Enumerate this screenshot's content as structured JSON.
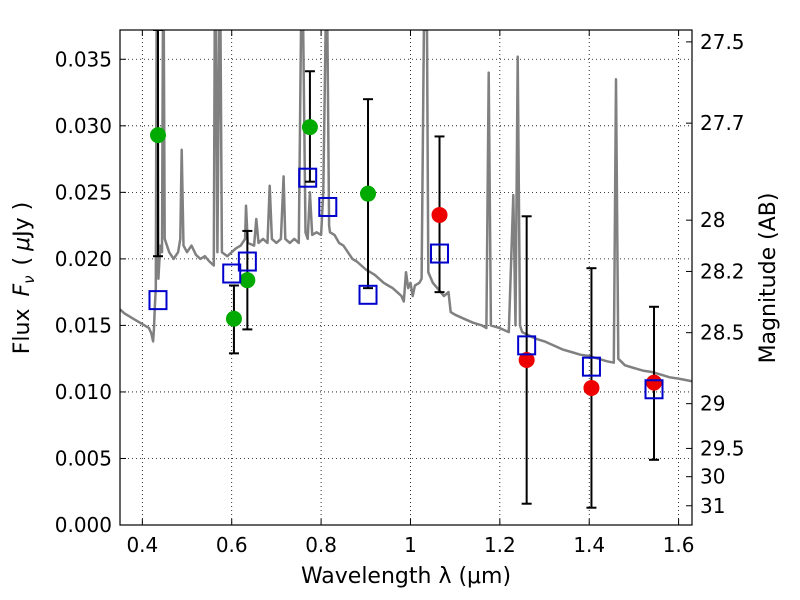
{
  "chart_data": {
    "type": "scatter",
    "xlabel": "Wavelength  λ (μm)",
    "ylabel": "Flux  F_ν  ( μJy )",
    "ylabel_parts": {
      "flux": "Flux",
      "symbol": "F",
      "subscript": "ν",
      "unit_open": "(",
      "mu": "μ",
      "unit_rest": "Jy )"
    },
    "y2label": "Magnitude (AB)",
    "xlim": [
      0.35,
      1.63
    ],
    "ylim": [
      0.0,
      0.0372
    ],
    "grid": true,
    "x_ticks": [
      {
        "value": 0.4,
        "label": "0.4"
      },
      {
        "value": 0.6,
        "label": "0.6"
      },
      {
        "value": 0.8,
        "label": "0.8"
      },
      {
        "value": 1.0,
        "label": "1"
      },
      {
        "value": 1.2,
        "label": "1.2"
      },
      {
        "value": 1.4,
        "label": "1.4"
      },
      {
        "value": 1.6,
        "label": "1.6"
      }
    ],
    "y_ticks": [
      {
        "value": 0.0,
        "label": "0.000"
      },
      {
        "value": 0.005,
        "label": "0.005"
      },
      {
        "value": 0.01,
        "label": "0.010"
      },
      {
        "value": 0.015,
        "label": "0.015"
      },
      {
        "value": 0.02,
        "label": "0.020"
      },
      {
        "value": 0.025,
        "label": "0.025"
      },
      {
        "value": 0.03,
        "label": "0.030"
      },
      {
        "value": 0.035,
        "label": "0.035"
      }
    ],
    "y2_ticks": [
      {
        "value": 27.5,
        "label": "27.5"
      },
      {
        "value": 27.7,
        "label": "27.7"
      },
      {
        "value": 28.0,
        "label": "28"
      },
      {
        "value": 28.2,
        "label": "28.2"
      },
      {
        "value": 28.5,
        "label": "28.5"
      },
      {
        "value": 29.0,
        "label": "29"
      },
      {
        "value": 29.5,
        "label": "29.5"
      },
      {
        "value": 30.0,
        "label": "30"
      },
      {
        "value": 31.0,
        "label": "31"
      }
    ],
    "series": [
      {
        "marker": "circle",
        "color": "#00aa00",
        "points": [
          {
            "x": 0.435,
            "y": 0.0293,
            "err_low": 0.0202,
            "err_high": 0.0372
          },
          {
            "x": 0.605,
            "y": 0.0155,
            "err_low": 0.0129,
            "err_high": 0.018
          },
          {
            "x": 0.635,
            "y": 0.0184,
            "err_low": 0.0147,
            "err_high": 0.0221
          },
          {
            "x": 0.775,
            "y": 0.0299,
            "err_low": 0.0258,
            "err_high": 0.0341
          },
          {
            "x": 0.905,
            "y": 0.0249,
            "err_low": 0.0178,
            "err_high": 0.032
          }
        ]
      },
      {
        "marker": "circle",
        "color": "#ee0000",
        "points": [
          {
            "x": 1.065,
            "y": 0.0233,
            "err_low": 0.0175,
            "err_high": 0.0292
          },
          {
            "x": 1.26,
            "y": 0.0124,
            "err_low": 0.0016,
            "err_high": 0.0232
          },
          {
            "x": 1.405,
            "y": 0.0103,
            "err_low": 0.0013,
            "err_high": 0.0193
          },
          {
            "x": 1.545,
            "y": 0.0107,
            "err_low": 0.0049,
            "err_high": 0.0164
          }
        ]
      },
      {
        "marker": "open-square",
        "color": "#0000cc",
        "points": [
          {
            "x": 0.435,
            "y": 0.0169
          },
          {
            "x": 0.6,
            "y": 0.0189
          },
          {
            "x": 0.635,
            "y": 0.0198
          },
          {
            "x": 0.77,
            "y": 0.0261
          },
          {
            "x": 0.815,
            "y": 0.0239
          },
          {
            "x": 0.905,
            "y": 0.0173
          },
          {
            "x": 1.065,
            "y": 0.0204
          },
          {
            "x": 1.26,
            "y": 0.0135
          },
          {
            "x": 1.405,
            "y": 0.0119
          },
          {
            "x": 1.545,
            "y": 0.0102
          }
        ]
      },
      {
        "type": "line",
        "color": "#808080",
        "points": [
          {
            "x": 0.35,
            "y": 0.0162
          },
          {
            "x": 0.36,
            "y": 0.0159
          },
          {
            "x": 0.38,
            "y": 0.0155
          },
          {
            "x": 0.4,
            "y": 0.0151
          },
          {
            "x": 0.415,
            "y": 0.0148
          },
          {
            "x": 0.42,
            "y": 0.0144
          },
          {
            "x": 0.424,
            "y": 0.0138
          },
          {
            "x": 0.426,
            "y": 0.0148
          },
          {
            "x": 0.428,
            "y": 0.0165
          },
          {
            "x": 0.43,
            "y": 0.0178
          },
          {
            "x": 0.432,
            "y": 0.0372
          },
          {
            "x": 0.434,
            "y": 0.0372
          },
          {
            "x": 0.436,
            "y": 0.0185
          },
          {
            "x": 0.44,
            "y": 0.021
          },
          {
            "x": 0.444,
            "y": 0.0205
          },
          {
            "x": 0.446,
            "y": 0.0372
          },
          {
            "x": 0.448,
            "y": 0.0372
          },
          {
            "x": 0.45,
            "y": 0.0215
          },
          {
            "x": 0.46,
            "y": 0.0205
          },
          {
            "x": 0.47,
            "y": 0.02
          },
          {
            "x": 0.48,
            "y": 0.0205
          },
          {
            "x": 0.485,
            "y": 0.0215
          },
          {
            "x": 0.488,
            "y": 0.0282
          },
          {
            "x": 0.492,
            "y": 0.021
          },
          {
            "x": 0.5,
            "y": 0.0205
          },
          {
            "x": 0.51,
            "y": 0.021
          },
          {
            "x": 0.52,
            "y": 0.0203
          },
          {
            "x": 0.53,
            "y": 0.02
          },
          {
            "x": 0.54,
            "y": 0.0202
          },
          {
            "x": 0.55,
            "y": 0.0198
          },
          {
            "x": 0.56,
            "y": 0.0195
          },
          {
            "x": 0.562,
            "y": 0.0372
          },
          {
            "x": 0.565,
            "y": 0.0372
          },
          {
            "x": 0.568,
            "y": 0.0205
          },
          {
            "x": 0.572,
            "y": 0.0372
          },
          {
            "x": 0.575,
            "y": 0.0372
          },
          {
            "x": 0.578,
            "y": 0.0205
          },
          {
            "x": 0.59,
            "y": 0.0202
          },
          {
            "x": 0.6,
            "y": 0.0205
          },
          {
            "x": 0.61,
            "y": 0.0208
          },
          {
            "x": 0.62,
            "y": 0.021
          },
          {
            "x": 0.63,
            "y": 0.0215
          },
          {
            "x": 0.632,
            "y": 0.024
          },
          {
            "x": 0.636,
            "y": 0.0212
          },
          {
            "x": 0.65,
            "y": 0.021
          },
          {
            "x": 0.655,
            "y": 0.023
          },
          {
            "x": 0.66,
            "y": 0.0212
          },
          {
            "x": 0.67,
            "y": 0.0215
          },
          {
            "x": 0.68,
            "y": 0.0212
          },
          {
            "x": 0.685,
            "y": 0.0255
          },
          {
            "x": 0.69,
            "y": 0.0215
          },
          {
            "x": 0.7,
            "y": 0.0212
          },
          {
            "x": 0.71,
            "y": 0.0215
          },
          {
            "x": 0.716,
            "y": 0.0262
          },
          {
            "x": 0.72,
            "y": 0.0215
          },
          {
            "x": 0.73,
            "y": 0.0212
          },
          {
            "x": 0.74,
            "y": 0.0215
          },
          {
            "x": 0.75,
            "y": 0.0212
          },
          {
            "x": 0.755,
            "y": 0.0372
          },
          {
            "x": 0.76,
            "y": 0.0372
          },
          {
            "x": 0.765,
            "y": 0.022
          },
          {
            "x": 0.77,
            "y": 0.0215
          },
          {
            "x": 0.775,
            "y": 0.025
          },
          {
            "x": 0.78,
            "y": 0.0218
          },
          {
            "x": 0.79,
            "y": 0.022
          },
          {
            "x": 0.8,
            "y": 0.0218
          },
          {
            "x": 0.805,
            "y": 0.025
          },
          {
            "x": 0.81,
            "y": 0.0372
          },
          {
            "x": 0.814,
            "y": 0.0372
          },
          {
            "x": 0.818,
            "y": 0.0225
          },
          {
            "x": 0.82,
            "y": 0.022
          },
          {
            "x": 0.83,
            "y": 0.0218
          },
          {
            "x": 0.84,
            "y": 0.0212
          },
          {
            "x": 0.85,
            "y": 0.021
          },
          {
            "x": 0.86,
            "y": 0.0205
          },
          {
            "x": 0.87,
            "y": 0.02
          },
          {
            "x": 0.88,
            "y": 0.0198
          },
          {
            "x": 0.89,
            "y": 0.0195
          },
          {
            "x": 0.9,
            "y": 0.0192
          },
          {
            "x": 0.91,
            "y": 0.019
          },
          {
            "x": 0.92,
            "y": 0.0188
          },
          {
            "x": 0.93,
            "y": 0.0185
          },
          {
            "x": 0.94,
            "y": 0.0182
          },
          {
            "x": 0.95,
            "y": 0.018
          },
          {
            "x": 0.96,
            "y": 0.0178
          },
          {
            "x": 0.97,
            "y": 0.0175
          },
          {
            "x": 0.98,
            "y": 0.0172
          },
          {
            "x": 0.985,
            "y": 0.0168
          },
          {
            "x": 0.99,
            "y": 0.019
          },
          {
            "x": 0.995,
            "y": 0.0178
          },
          {
            "x": 1.0,
            "y": 0.0182
          },
          {
            "x": 1.005,
            "y": 0.0172
          },
          {
            "x": 1.01,
            "y": 0.018
          },
          {
            "x": 1.02,
            "y": 0.0182
          },
          {
            "x": 1.025,
            "y": 0.0185
          },
          {
            "x": 1.03,
            "y": 0.0372
          },
          {
            "x": 1.037,
            "y": 0.0372
          },
          {
            "x": 1.04,
            "y": 0.019
          },
          {
            "x": 1.05,
            "y": 0.0182
          },
          {
            "x": 1.06,
            "y": 0.0178
          },
          {
            "x": 1.075,
            "y": 0.0172
          },
          {
            "x": 1.085,
            "y": 0.0175
          },
          {
            "x": 1.09,
            "y": 0.016
          },
          {
            "x": 1.1,
            "y": 0.0158
          },
          {
            "x": 1.12,
            "y": 0.0155
          },
          {
            "x": 1.14,
            "y": 0.0152
          },
          {
            "x": 1.16,
            "y": 0.015
          },
          {
            "x": 1.17,
            "y": 0.0148
          },
          {
            "x": 1.175,
            "y": 0.034
          },
          {
            "x": 1.18,
            "y": 0.015
          },
          {
            "x": 1.2,
            "y": 0.0148
          },
          {
            "x": 1.22,
            "y": 0.0145
          },
          {
            "x": 1.23,
            "y": 0.0248
          },
          {
            "x": 1.235,
            "y": 0.015
          },
          {
            "x": 1.24,
            "y": 0.0352
          },
          {
            "x": 1.245,
            "y": 0.015
          },
          {
            "x": 1.25,
            "y": 0.0145
          },
          {
            "x": 1.28,
            "y": 0.014
          },
          {
            "x": 1.3,
            "y": 0.0138
          },
          {
            "x": 1.32,
            "y": 0.0135
          },
          {
            "x": 1.34,
            "y": 0.0132
          },
          {
            "x": 1.36,
            "y": 0.013
          },
          {
            "x": 1.38,
            "y": 0.0128
          },
          {
            "x": 1.4,
            "y": 0.0127
          },
          {
            "x": 1.42,
            "y": 0.0125
          },
          {
            "x": 1.44,
            "y": 0.0123
          },
          {
            "x": 1.455,
            "y": 0.0122
          },
          {
            "x": 1.46,
            "y": 0.0335
          },
          {
            "x": 1.465,
            "y": 0.0125
          },
          {
            "x": 1.48,
            "y": 0.012
          },
          {
            "x": 1.5,
            "y": 0.0118
          },
          {
            "x": 1.52,
            "y": 0.0116
          },
          {
            "x": 1.54,
            "y": 0.0115
          },
          {
            "x": 1.56,
            "y": 0.0113
          },
          {
            "x": 1.58,
            "y": 0.0111
          },
          {
            "x": 1.6,
            "y": 0.011
          },
          {
            "x": 1.63,
            "y": 0.0108
          }
        ]
      }
    ]
  }
}
